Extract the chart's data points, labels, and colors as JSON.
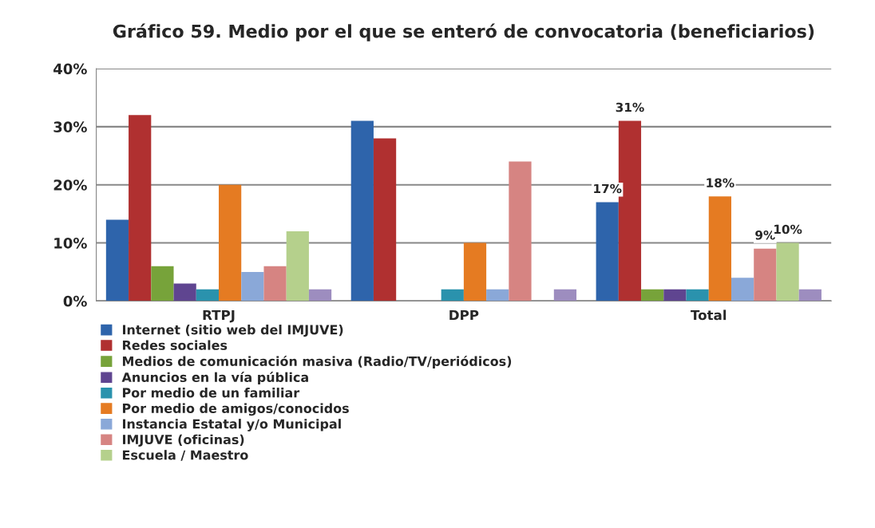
{
  "chart_data": {
    "type": "bar",
    "title": "Gráfico 59. Medio por el que se enteró de convocatoria (beneficiarios)",
    "categories": [
      "RTPJ",
      "DPP",
      "Total"
    ],
    "series": [
      {
        "name": "Internet (sitio web del IMJUVE)",
        "color": "#2e64ab",
        "values": [
          14,
          31,
          17
        ],
        "value_labels": [
          null,
          null,
          "17%"
        ]
      },
      {
        "name": "Redes sociales",
        "color": "#b03030",
        "values": [
          32,
          28,
          31
        ],
        "value_labels": [
          null,
          null,
          "31%"
        ]
      },
      {
        "name": "Medios de comunicación masiva (Radio/TV/periódicos)",
        "color": "#77a33a",
        "values": [
          6,
          0,
          2
        ]
      },
      {
        "name": "Anuncios en la vía pública",
        "color": "#5f4590",
        "values": [
          3,
          0,
          2
        ]
      },
      {
        "name": "Por medio de un familiar",
        "color": "#2a92ad",
        "values": [
          2,
          2,
          2
        ]
      },
      {
        "name": "Por medio de amigos/conocidos",
        "color": "#e57b22",
        "values": [
          20,
          10,
          18
        ],
        "value_labels": [
          null,
          null,
          "18%"
        ]
      },
      {
        "name": "Instancia Estatal y/o Municipal",
        "color": "#8aa8d8",
        "values": [
          5,
          2,
          4
        ]
      },
      {
        "name": "IMJUVE (oficinas)",
        "color": "#d68482",
        "values": [
          6,
          24,
          9
        ],
        "value_labels": [
          null,
          null,
          "9%"
        ]
      },
      {
        "name": "Escuela / Maestro",
        "color": "#b5d08c",
        "values": [
          12,
          0,
          10
        ],
        "value_labels": [
          null,
          null,
          "10%"
        ]
      },
      {
        "color": "#9d8dbf",
        "values": [
          2,
          2,
          2
        ]
      }
    ],
    "ylim": [
      0,
      40
    ],
    "yticks": [
      {
        "value": 0,
        "label": "0%"
      },
      {
        "value": 10,
        "label": "10%"
      },
      {
        "value": 20,
        "label": "20%"
      },
      {
        "value": 30,
        "label": "30%"
      },
      {
        "value": 40,
        "label": "40%"
      }
    ],
    "grid": "y",
    "legend": "bottom left"
  }
}
